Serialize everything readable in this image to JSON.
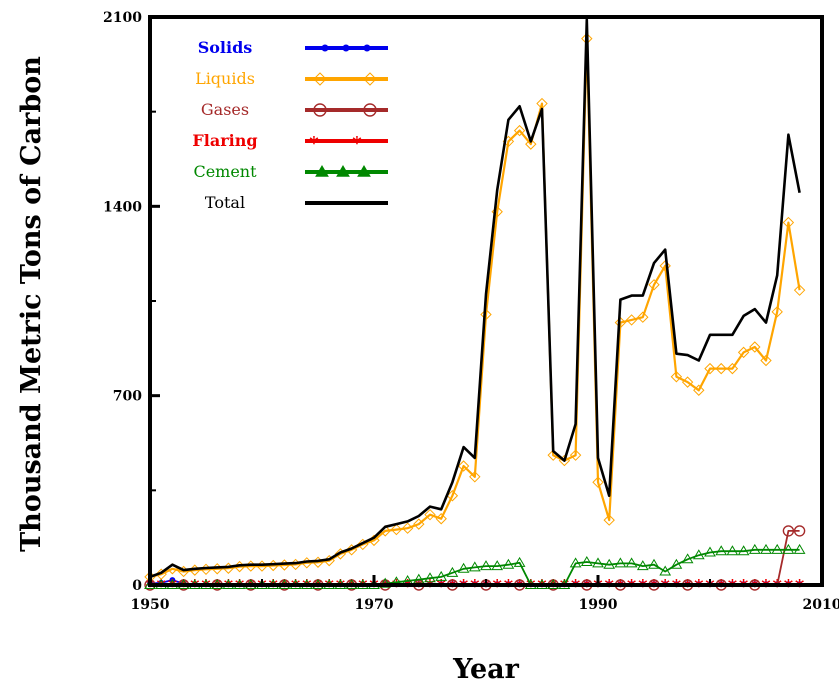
{
  "chart_data": {
    "type": "line",
    "title": "",
    "xlabel": "Year",
    "ylabel": "Thousand Metric Tons of Carbon",
    "xlim": [
      1950,
      2010
    ],
    "ylim": [
      0,
      2100
    ],
    "xticks": [
      1950,
      1970,
      1990,
      2010
    ],
    "yticks": [
      0,
      700,
      1400,
      2100
    ],
    "grid": false,
    "legend_position": "top-left",
    "x": [
      1950,
      1951,
      1952,
      1953,
      1954,
      1955,
      1956,
      1957,
      1958,
      1959,
      1960,
      1961,
      1962,
      1963,
      1964,
      1965,
      1966,
      1967,
      1968,
      1969,
      1970,
      1971,
      1972,
      1973,
      1974,
      1975,
      1976,
      1977,
      1978,
      1979,
      1980,
      1981,
      1982,
      1983,
      1984,
      1985,
      1986,
      1987,
      1988,
      1989,
      1990,
      1991,
      1992,
      1993,
      1994,
      1995,
      1996,
      1997,
      1998,
      1999,
      2000,
      2001,
      2002,
      2003,
      2004,
      2005,
      2006,
      2007,
      2008
    ],
    "series": [
      {
        "name": "Solids",
        "color": "#0000ee",
        "marker": "filled-circle",
        "values": [
          5,
          8,
          18,
          5,
          3,
          3,
          3,
          3,
          3,
          3,
          3,
          3,
          3,
          3,
          3,
          3,
          3,
          3,
          3,
          3,
          3,
          3,
          3,
          3,
          3,
          3,
          3,
          3,
          3,
          3,
          3,
          3,
          3,
          3,
          3,
          3,
          3,
          3,
          3,
          3,
          3,
          3,
          3,
          3,
          3,
          3,
          3,
          3,
          3,
          3,
          3,
          3,
          3,
          3,
          3,
          3,
          3,
          3,
          3
        ]
      },
      {
        "name": "Liquids",
        "color": "#ffa500",
        "marker": "open-diamond",
        "values": [
          30,
          40,
          60,
          50,
          55,
          58,
          60,
          62,
          68,
          70,
          70,
          72,
          74,
          76,
          82,
          84,
          90,
          115,
          130,
          150,
          165,
          200,
          205,
          210,
          225,
          260,
          245,
          330,
          440,
          400,
          1000,
          1380,
          1640,
          1680,
          1630,
          1780,
          480,
          460,
          480,
          2020,
          380,
          240,
          970,
          980,
          990,
          1110,
          1180,
          770,
          750,
          720,
          800,
          800,
          800,
          860,
          880,
          830,
          1010,
          1340,
          1090
        ]
      },
      {
        "name": "Gases",
        "color": "#a52a2a",
        "marker": "open-circle",
        "values": [
          0,
          0,
          0,
          0,
          0,
          0,
          0,
          0,
          0,
          0,
          0,
          0,
          0,
          0,
          0,
          0,
          0,
          0,
          0,
          0,
          0,
          0,
          0,
          0,
          0,
          0,
          0,
          0,
          0,
          0,
          0,
          0,
          0,
          0,
          0,
          0,
          0,
          0,
          0,
          0,
          0,
          0,
          0,
          0,
          0,
          0,
          0,
          0,
          0,
          0,
          0,
          0,
          0,
          0,
          0,
          0,
          0,
          200,
          200
        ]
      },
      {
        "name": "Flaring",
        "color": "#ee0000",
        "marker": "asterisk",
        "values": [
          0,
          0,
          0,
          0,
          0,
          0,
          0,
          0,
          0,
          0,
          0,
          0,
          0,
          0,
          0,
          0,
          0,
          0,
          0,
          0,
          0,
          0,
          0,
          0,
          0,
          0,
          0,
          0,
          0,
          0,
          0,
          0,
          0,
          0,
          0,
          0,
          0,
          0,
          0,
          0,
          0,
          0,
          0,
          0,
          0,
          0,
          0,
          0,
          0,
          0,
          0,
          0,
          0,
          0,
          0,
          0,
          0,
          0,
          0
        ]
      },
      {
        "name": "Cement",
        "color": "#008800",
        "marker": "filled-triangle",
        "values": [
          0,
          0,
          0,
          0,
          0,
          0,
          0,
          0,
          0,
          0,
          0,
          0,
          0,
          0,
          0,
          0,
          0,
          0,
          0,
          0,
          0,
          5,
          10,
          15,
          20,
          25,
          30,
          45,
          60,
          65,
          70,
          70,
          75,
          82,
          0,
          0,
          0,
          0,
          80,
          85,
          80,
          75,
          80,
          80,
          70,
          75,
          50,
          75,
          95,
          110,
          120,
          125,
          125,
          125,
          130,
          130,
          130,
          130,
          130
        ]
      },
      {
        "name": "Total",
        "color": "#000000",
        "marker": "none",
        "values": [
          30,
          45,
          75,
          55,
          60,
          63,
          65,
          67,
          73,
          75,
          75,
          77,
          79,
          81,
          87,
          89,
          95,
          120,
          135,
          155,
          175,
          215,
          225,
          235,
          255,
          290,
          280,
          380,
          510,
          470,
          1075,
          1460,
          1720,
          1770,
          1640,
          1760,
          495,
          460,
          595,
          2090,
          470,
          330,
          1055,
          1070,
          1070,
          1190,
          1240,
          855,
          850,
          830,
          925,
          925,
          925,
          995,
          1020,
          970,
          1145,
          1665,
          1450
        ]
      }
    ]
  }
}
